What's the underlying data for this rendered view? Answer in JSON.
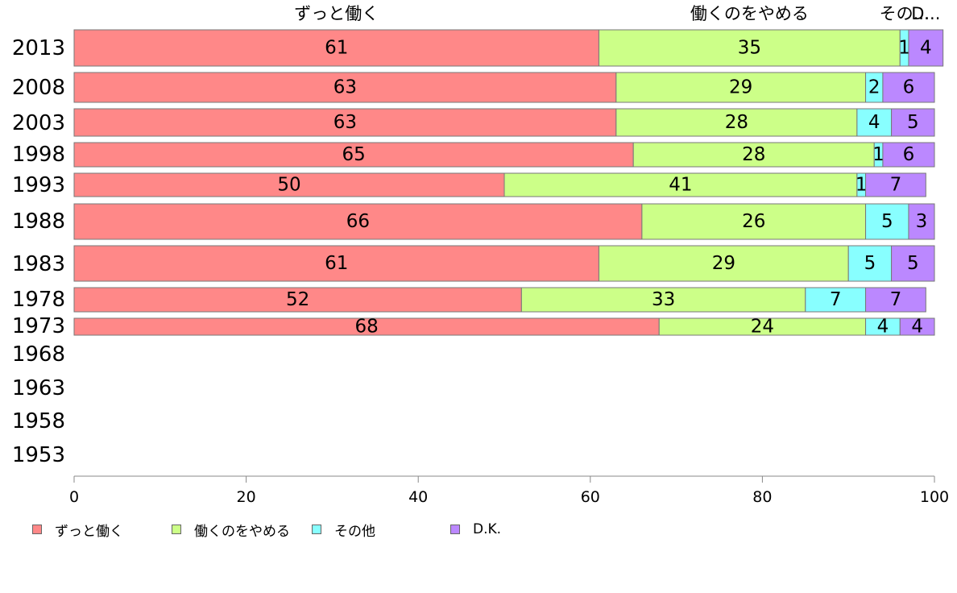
{
  "chart_data": {
    "type": "bar",
    "orientation": "horizontal",
    "stacked": true,
    "categories": [
      "2013",
      "2008",
      "2003",
      "1998",
      "1993",
      "1988",
      "1983",
      "1978",
      "1973",
      "1968",
      "1963",
      "1958",
      "1953"
    ],
    "series": [
      {
        "name": "ずっと働く",
        "color": "#ff8888",
        "values": [
          61,
          63,
          63,
          65,
          50,
          66,
          61,
          52,
          68,
          null,
          null,
          null,
          null
        ]
      },
      {
        "name": "働くのをやめる",
        "color": "#ccff88",
        "values": [
          35,
          29,
          28,
          28,
          41,
          26,
          29,
          33,
          24,
          null,
          null,
          null,
          null
        ]
      },
      {
        "name": "その他",
        "color": "#88ffff",
        "values": [
          1,
          2,
          4,
          1,
          1,
          5,
          5,
          7,
          4,
          null,
          null,
          null,
          null
        ]
      },
      {
        "name": "D.K.",
        "color": "#bb88ff",
        "values": [
          4,
          6,
          5,
          6,
          7,
          3,
          5,
          7,
          4,
          null,
          null,
          null,
          null
        ]
      }
    ],
    "top_labels": [
      "ずっと働く",
      "働くのをやめる",
      "その...",
      "D..."
    ],
    "xlim": [
      0,
      100
    ],
    "xticks": [
      0,
      20,
      40,
      60,
      80,
      100
    ],
    "grid": false,
    "legend_position": "bottom-left"
  }
}
